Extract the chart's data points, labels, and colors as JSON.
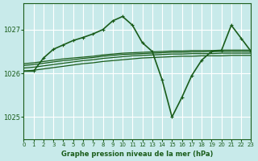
{
  "bg_color": "#c8eaea",
  "grid_color": "#ffffff",
  "line_color": "#1a5c1a",
  "title": "Graphe pression niveau de la mer (hPa)",
  "xlim": [
    0,
    23
  ],
  "ylim": [
    1024.5,
    1027.6
  ],
  "yticks": [
    1025,
    1026,
    1027
  ],
  "xticks": [
    0,
    1,
    2,
    3,
    4,
    5,
    6,
    7,
    8,
    9,
    10,
    11,
    12,
    13,
    14,
    15,
    16,
    17,
    18,
    19,
    20,
    21,
    22,
    23
  ],
  "series": [
    {
      "x": [
        0,
        1,
        2,
        3,
        4,
        5,
        6,
        7,
        8,
        9,
        10,
        11,
        12,
        13,
        14,
        15,
        16,
        17,
        18,
        19,
        20,
        21,
        22,
        23
      ],
      "y": [
        1026.05,
        1026.07,
        1026.1,
        1026.13,
        1026.16,
        1026.19,
        1026.22,
        1026.24,
        1026.27,
        1026.29,
        1026.31,
        1026.33,
        1026.35,
        1026.36,
        1026.37,
        1026.38,
        1026.39,
        1026.39,
        1026.4,
        1026.4,
        1026.4,
        1026.41,
        1026.41,
        1026.41
      ],
      "marker": null,
      "lw": 0.9
    },
    {
      "x": [
        0,
        1,
        2,
        3,
        4,
        5,
        6,
        7,
        8,
        9,
        10,
        11,
        12,
        13,
        14,
        15,
        16,
        17,
        18,
        19,
        20,
        21,
        22,
        23
      ],
      "y": [
        1026.12,
        1026.14,
        1026.17,
        1026.2,
        1026.23,
        1026.26,
        1026.29,
        1026.31,
        1026.34,
        1026.36,
        1026.38,
        1026.4,
        1026.41,
        1026.42,
        1026.43,
        1026.44,
        1026.44,
        1026.45,
        1026.45,
        1026.45,
        1026.46,
        1026.46,
        1026.46,
        1026.46
      ],
      "marker": null,
      "lw": 0.9
    },
    {
      "x": [
        0,
        1,
        2,
        3,
        4,
        5,
        6,
        7,
        8,
        9,
        10,
        11,
        12,
        13,
        14,
        15,
        16,
        17,
        18,
        19,
        20,
        21,
        22,
        23
      ],
      "y": [
        1026.18,
        1026.2,
        1026.23,
        1026.26,
        1026.29,
        1026.31,
        1026.34,
        1026.36,
        1026.39,
        1026.41,
        1026.43,
        1026.44,
        1026.45,
        1026.46,
        1026.47,
        1026.48,
        1026.48,
        1026.49,
        1026.49,
        1026.5,
        1026.5,
        1026.5,
        1026.5,
        1026.5
      ],
      "marker": null,
      "lw": 0.9
    },
    {
      "x": [
        0,
        1,
        2,
        3,
        4,
        5,
        6,
        7,
        8,
        9,
        10,
        11,
        12,
        13,
        14,
        15,
        16,
        17,
        18,
        19,
        20,
        21,
        22,
        23
      ],
      "y": [
        1026.22,
        1026.24,
        1026.27,
        1026.3,
        1026.33,
        1026.35,
        1026.37,
        1026.39,
        1026.42,
        1026.44,
        1026.46,
        1026.47,
        1026.48,
        1026.49,
        1026.5,
        1026.51,
        1026.51,
        1026.52,
        1026.52,
        1026.52,
        1026.53,
        1026.53,
        1026.53,
        1026.53
      ],
      "marker": null,
      "lw": 0.9
    },
    {
      "x": [
        0,
        1,
        2,
        3,
        4,
        5,
        6,
        7,
        8,
        9,
        10,
        11,
        12,
        13,
        14,
        15,
        16,
        17,
        18,
        19,
        20,
        21,
        22,
        23
      ],
      "y": [
        1026.05,
        1026.05,
        1026.35,
        1026.55,
        1026.65,
        1026.75,
        1026.82,
        1026.9,
        1027.0,
        1027.2,
        1027.3,
        1027.1,
        1026.7,
        1026.5,
        1025.85,
        1025.0,
        1025.45,
        1025.95,
        1026.3,
        1026.5,
        1026.52,
        1027.1,
        1026.8,
        1026.5
      ],
      "marker": "+",
      "lw": 1.2
    }
  ]
}
